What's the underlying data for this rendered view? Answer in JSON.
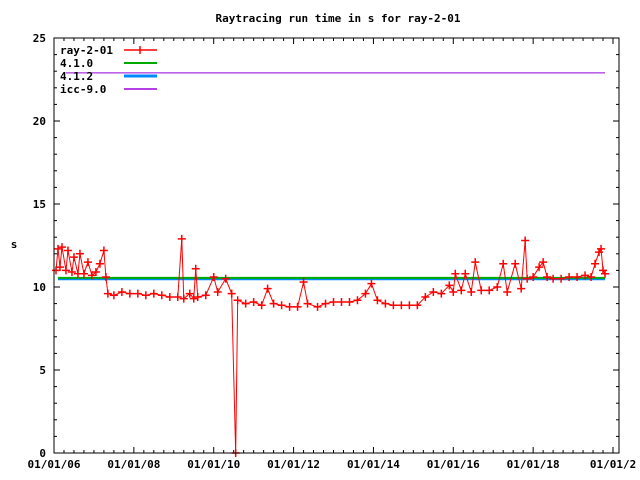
{
  "chart_data": {
    "type": "line",
    "title": "Raytracing run time in s for ray-2-01",
    "xlabel": "",
    "ylabel": "s",
    "xlim": [
      2006,
      2020.15
    ],
    "ylim": [
      0,
      25
    ],
    "x_ticks": [
      {
        "value": 2006,
        "label": "01/01/06"
      },
      {
        "value": 2008,
        "label": "01/01/08"
      },
      {
        "value": 2010,
        "label": "01/01/10"
      },
      {
        "value": 2012,
        "label": "01/01/12"
      },
      {
        "value": 2014,
        "label": "01/01/14"
      },
      {
        "value": 2016,
        "label": "01/01/16"
      },
      {
        "value": 2018,
        "label": "01/01/18"
      },
      {
        "value": 2020,
        "label": "01/01/2"
      }
    ],
    "y_ticks": [
      0,
      5,
      10,
      15,
      20,
      25
    ],
    "grid": false,
    "legend_position": "top-left",
    "series": [
      {
        "name": "ray-2-01",
        "color": "#ff0000",
        "style": "linespoints",
        "points": [
          [
            2006.05,
            11.0
          ],
          [
            2006.1,
            12.3
          ],
          [
            2006.15,
            11.2
          ],
          [
            2006.2,
            12.4
          ],
          [
            2006.3,
            11.0
          ],
          [
            2006.35,
            12.2
          ],
          [
            2006.45,
            10.9
          ],
          [
            2006.5,
            11.8
          ],
          [
            2006.6,
            10.8
          ],
          [
            2006.65,
            12.0
          ],
          [
            2006.75,
            10.8
          ],
          [
            2006.85,
            11.5
          ],
          [
            2006.95,
            10.7
          ],
          [
            2007.05,
            10.9
          ],
          [
            2007.15,
            11.4
          ],
          [
            2007.25,
            12.2
          ],
          [
            2007.3,
            10.6
          ],
          [
            2007.35,
            9.6
          ],
          [
            2007.5,
            9.5
          ],
          [
            2007.7,
            9.7
          ],
          [
            2007.9,
            9.6
          ],
          [
            2008.1,
            9.6
          ],
          [
            2008.3,
            9.5
          ],
          [
            2008.5,
            9.6
          ],
          [
            2008.7,
            9.5
          ],
          [
            2008.9,
            9.4
          ],
          [
            2009.1,
            9.4
          ],
          [
            2009.2,
            12.9
          ],
          [
            2009.25,
            9.3
          ],
          [
            2009.4,
            9.6
          ],
          [
            2009.5,
            9.3
          ],
          [
            2009.55,
            11.1
          ],
          [
            2009.6,
            9.4
          ],
          [
            2009.8,
            9.5
          ],
          [
            2010.0,
            10.6
          ],
          [
            2010.1,
            9.7
          ],
          [
            2010.3,
            10.5
          ],
          [
            2010.45,
            9.6
          ],
          [
            2010.55,
            0.0
          ],
          [
            2010.6,
            9.2
          ],
          [
            2010.8,
            9.0
          ],
          [
            2011.0,
            9.1
          ],
          [
            2011.2,
            8.9
          ],
          [
            2011.35,
            9.9
          ],
          [
            2011.5,
            9.0
          ],
          [
            2011.7,
            8.9
          ],
          [
            2011.9,
            8.8
          ],
          [
            2012.1,
            8.8
          ],
          [
            2012.25,
            10.3
          ],
          [
            2012.35,
            9.0
          ],
          [
            2012.6,
            8.8
          ],
          [
            2012.8,
            9.0
          ],
          [
            2013.0,
            9.1
          ],
          [
            2013.2,
            9.1
          ],
          [
            2013.4,
            9.1
          ],
          [
            2013.6,
            9.2
          ],
          [
            2013.8,
            9.6
          ],
          [
            2013.95,
            10.2
          ],
          [
            2014.1,
            9.2
          ],
          [
            2014.3,
            9.0
          ],
          [
            2014.5,
            8.9
          ],
          [
            2014.7,
            8.9
          ],
          [
            2014.9,
            8.9
          ],
          [
            2015.1,
            8.9
          ],
          [
            2015.3,
            9.4
          ],
          [
            2015.5,
            9.7
          ],
          [
            2015.7,
            9.6
          ],
          [
            2015.9,
            10.1
          ],
          [
            2016.0,
            9.7
          ],
          [
            2016.05,
            10.8
          ],
          [
            2016.2,
            9.8
          ],
          [
            2016.3,
            10.8
          ],
          [
            2016.45,
            9.7
          ],
          [
            2016.55,
            11.5
          ],
          [
            2016.7,
            9.8
          ],
          [
            2016.9,
            9.8
          ],
          [
            2017.1,
            10.0
          ],
          [
            2017.25,
            11.4
          ],
          [
            2017.35,
            9.7
          ],
          [
            2017.55,
            11.4
          ],
          [
            2017.7,
            9.9
          ],
          [
            2017.8,
            12.8
          ],
          [
            2017.85,
            10.5
          ],
          [
            2018.0,
            10.6
          ],
          [
            2018.15,
            11.2
          ],
          [
            2018.25,
            11.5
          ],
          [
            2018.35,
            10.6
          ],
          [
            2018.5,
            10.5
          ],
          [
            2018.7,
            10.5
          ],
          [
            2018.9,
            10.6
          ],
          [
            2019.1,
            10.6
          ],
          [
            2019.3,
            10.7
          ],
          [
            2019.45,
            10.6
          ],
          [
            2019.55,
            11.4
          ],
          [
            2019.65,
            12.1
          ],
          [
            2019.7,
            12.3
          ],
          [
            2019.75,
            11.0
          ],
          [
            2019.8,
            10.8
          ]
        ]
      },
      {
        "name": "4.1.0",
        "color": "#00aa00",
        "style": "line",
        "points": [
          [
            2006.1,
            10.55
          ],
          [
            2019.8,
            10.55
          ]
        ]
      },
      {
        "name": "4.1.2",
        "color": "#0088ff",
        "style": "line",
        "points": [
          [
            2006.1,
            10.5
          ],
          [
            2019.8,
            10.5
          ]
        ]
      },
      {
        "name": "icc-9.0",
        "color": "#9900dd",
        "style": "line",
        "points": [
          [
            2006.3,
            22.9
          ],
          [
            2019.8,
            22.9
          ]
        ]
      }
    ]
  }
}
